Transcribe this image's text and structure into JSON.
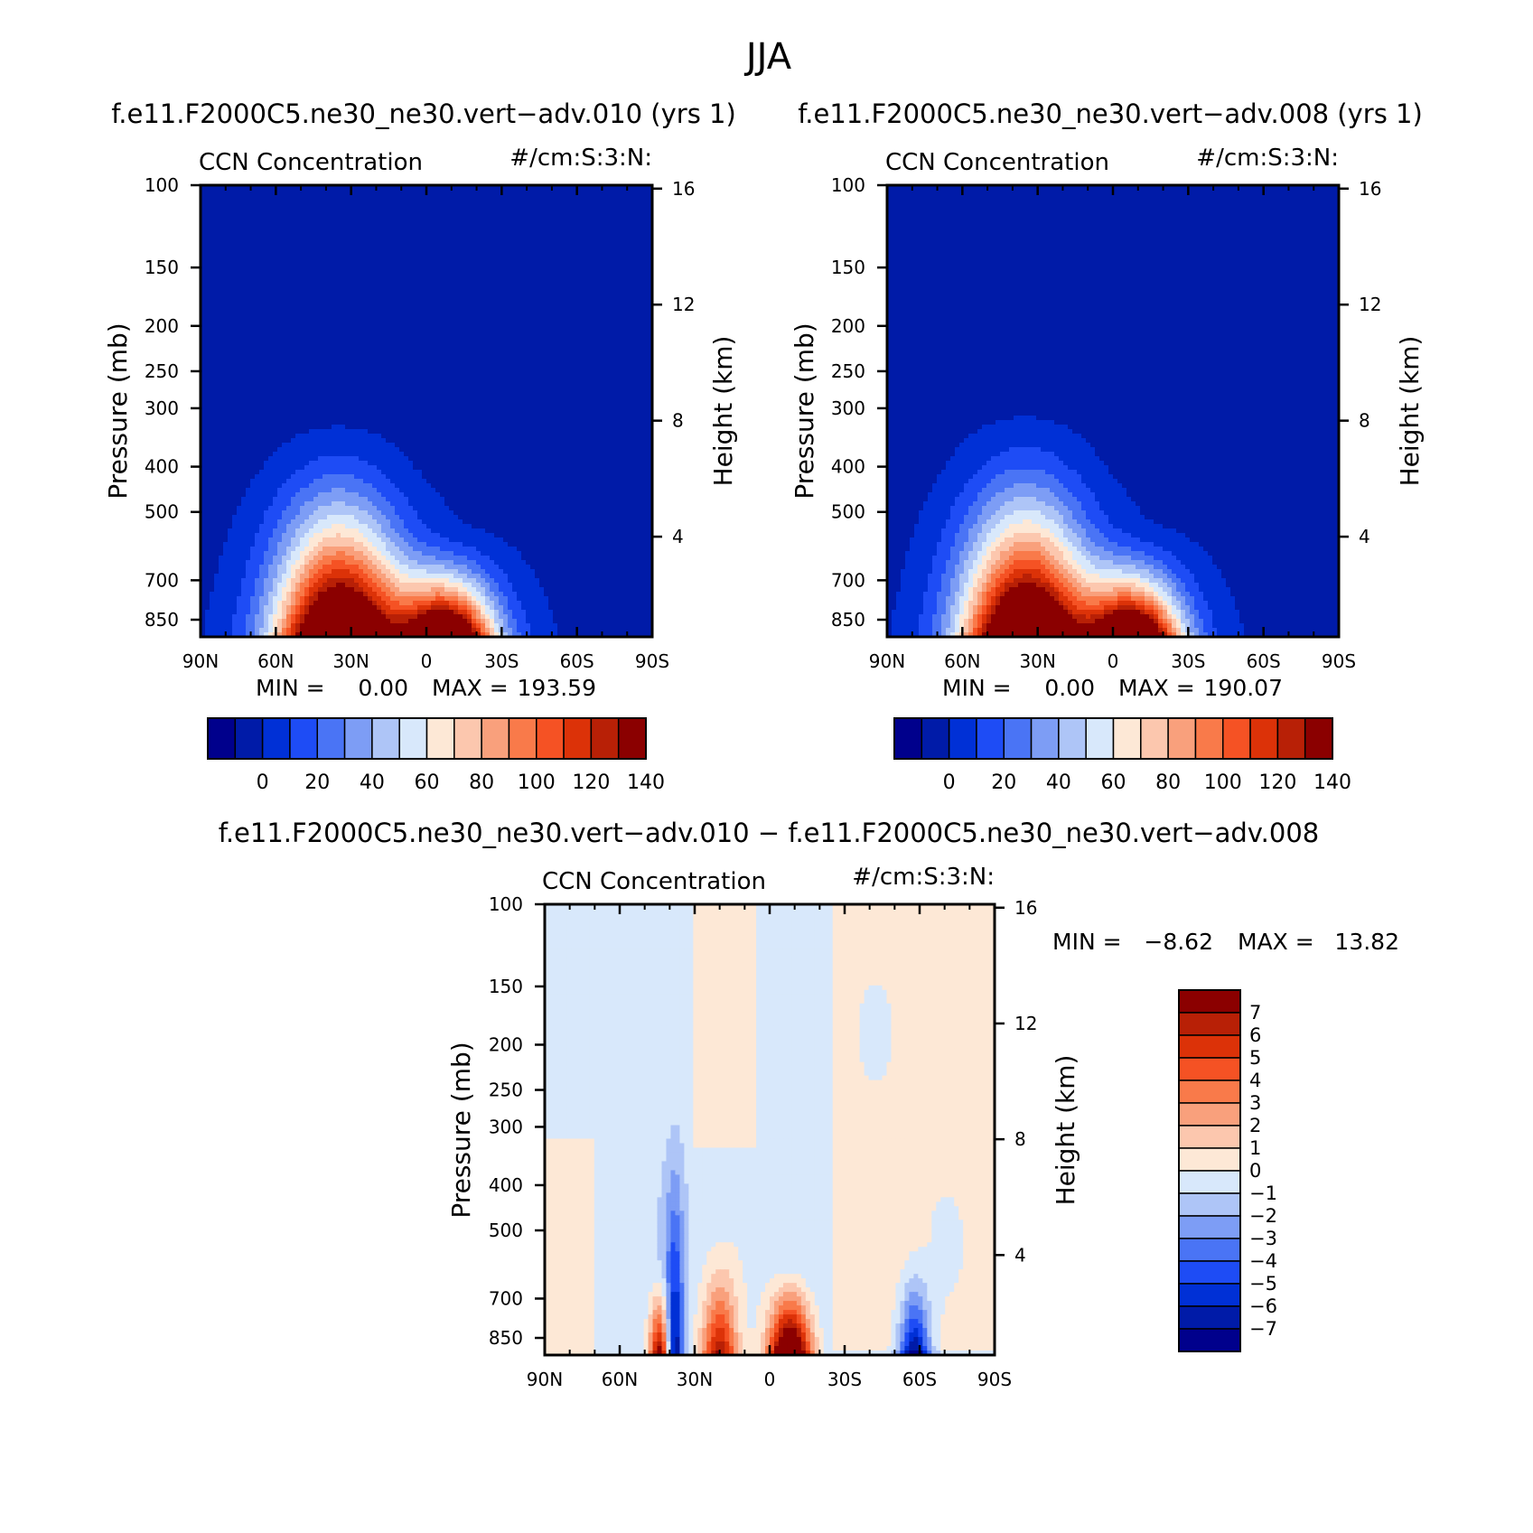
{
  "figure_title": "JJA",
  "colors": {
    "seq_colormap": [
      "#00008c",
      "#001ba8",
      "#0030d6",
      "#1e4cf5",
      "#4a74f5",
      "#7d9df5",
      "#aec5f7",
      "#d8e8fb",
      "#fde8d6",
      "#fcc7ae",
      "#f9a07c",
      "#f97a4a",
      "#f55224",
      "#dc3208",
      "#b82006",
      "#8b0000"
    ],
    "diff_colormap": [
      "#00008c",
      "#001ba8",
      "#0030d6",
      "#1e4cf5",
      "#4a74f5",
      "#7d9df5",
      "#aec5f7",
      "#d8e8fb",
      "#fde8d6",
      "#fcc7ae",
      "#f9a07c",
      "#f97a4a",
      "#f55224",
      "#dc3208",
      "#b82006",
      "#8b0000"
    ]
  },
  "chart_data": [
    {
      "type": "heatmap",
      "title": "f.e11.F2000C5.ne30_ne30.vert−adv.010 (yrs 1)",
      "left_string": "CCN Concentration",
      "right_string": "#/cm:S:3:N:",
      "xlabel": "",
      "ylabel": "Pressure (mb)",
      "ylabel_right": "Height (km)",
      "x_ticks": [
        "90N",
        "60N",
        "30N",
        "0",
        "30S",
        "60S",
        "90S"
      ],
      "y_ticks": [
        "100",
        "150",
        "200",
        "250",
        "300",
        "400",
        "500",
        "700",
        "850"
      ],
      "y_ticks_right": [
        "16",
        "12",
        "8",
        "4"
      ],
      "ylim": [
        100,
        925
      ],
      "min_text": "MIN =",
      "min_value": "0.00",
      "max_text": "MAX =",
      "max_value": "193.59",
      "colorbar_labels": [
        "0",
        "20",
        "40",
        "60",
        "80",
        "100",
        "120",
        "140"
      ],
      "levels": [
        -10,
        0,
        10,
        20,
        30,
        40,
        50,
        60,
        70,
        80,
        90,
        100,
        110,
        120,
        130,
        140,
        150
      ],
      "features": [
        {
          "name": "plume-30N",
          "lat": 35,
          "top_p": 265,
          "peak": 190,
          "width_deg": 40
        },
        {
          "name": "plume-10S",
          "lat": -8,
          "top_p": 520,
          "peak": 180,
          "width_deg": 30
        }
      ]
    },
    {
      "type": "heatmap",
      "title": "f.e11.F2000C5.ne30_ne30.vert−adv.008 (yrs 1)",
      "left_string": "CCN Concentration",
      "right_string": "#/cm:S:3:N:",
      "xlabel": "",
      "ylabel": "Pressure (mb)",
      "ylabel_right": "Height (km)",
      "x_ticks": [
        "90N",
        "60N",
        "30N",
        "0",
        "30S",
        "60S",
        "90S"
      ],
      "y_ticks": [
        "100",
        "150",
        "200",
        "250",
        "300",
        "400",
        "500",
        "700",
        "850"
      ],
      "y_ticks_right": [
        "16",
        "12",
        "8",
        "4"
      ],
      "ylim": [
        100,
        925
      ],
      "min_text": "MIN =",
      "min_value": "0.00",
      "max_text": "MAX =",
      "max_value": "190.07",
      "colorbar_labels": [
        "0",
        "20",
        "40",
        "60",
        "80",
        "100",
        "120",
        "140"
      ],
      "levels": [
        -10,
        0,
        10,
        20,
        30,
        40,
        50,
        60,
        70,
        80,
        90,
        100,
        110,
        120,
        130,
        140,
        150
      ],
      "features": [
        {
          "name": "plume-30N",
          "lat": 35,
          "top_p": 250,
          "peak": 188,
          "width_deg": 40
        },
        {
          "name": "plume-10S",
          "lat": -8,
          "top_p": 515,
          "peak": 178,
          "width_deg": 30
        }
      ]
    },
    {
      "type": "heatmap",
      "title": "f.e11.F2000C5.ne30_ne30.vert−adv.010 − f.e11.F2000C5.ne30_ne30.vert−adv.008",
      "left_string": "CCN Concentration",
      "right_string": "#/cm:S:3:N:",
      "xlabel": "",
      "ylabel": "Pressure (mb)",
      "ylabel_right": "Height (km)",
      "x_ticks": [
        "90N",
        "60N",
        "30N",
        "0",
        "30S",
        "60S",
        "90S"
      ],
      "y_ticks": [
        "100",
        "150",
        "200",
        "250",
        "300",
        "400",
        "500",
        "700",
        "850"
      ],
      "y_ticks_right": [
        "16",
        "12",
        "8",
        "4"
      ],
      "ylim": [
        100,
        925
      ],
      "min_text": "MIN =",
      "min_value": "−8.62",
      "max_text": "MAX =",
      "max_value": "13.82",
      "colorbar_labels": [
        "7",
        "6",
        "5",
        "4",
        "3",
        "2",
        "1",
        "0",
        "−1",
        "−2",
        "−3",
        "−4",
        "−5",
        "−6",
        "−7"
      ],
      "levels": [
        -8,
        -7,
        -6,
        -5,
        -4,
        -3,
        -2,
        -1,
        0,
        1,
        2,
        3,
        4,
        5,
        6,
        7,
        8
      ],
      "features": [
        {
          "name": "pos-45N",
          "lat": 44,
          "top_p": 560,
          "peak": 9,
          "width_deg": 7
        },
        {
          "name": "neg-38N",
          "lat": 38,
          "top_p": 230,
          "peak": -7,
          "width_deg": 6
        },
        {
          "name": "pos-20N",
          "lat": 20,
          "top_p": 490,
          "peak": 8,
          "width_deg": 12
        },
        {
          "name": "pos-8S",
          "lat": -8,
          "top_p": 560,
          "peak": 13,
          "width_deg": 14
        },
        {
          "name": "neg-58S",
          "lat": -58,
          "top_p": 520,
          "peak": -8,
          "width_deg": 10
        }
      ]
    }
  ]
}
